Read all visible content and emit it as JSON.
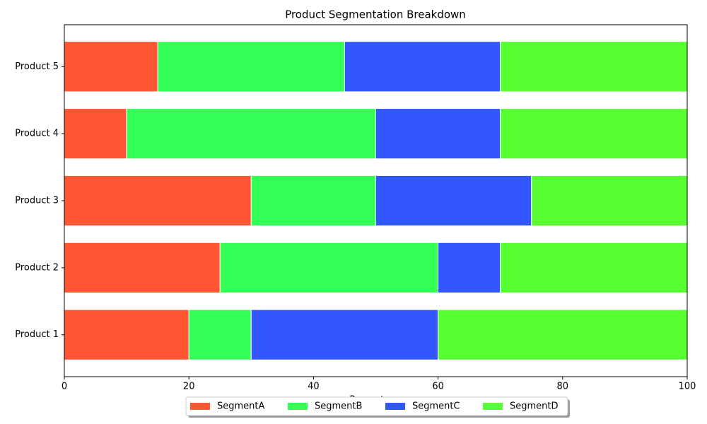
{
  "chart_data": {
    "type": "bar",
    "orientation": "horizontal",
    "stacked": true,
    "title": "Product Segmentation Breakdown",
    "xlabel": "Percentage",
    "categories": [
      "Product 1",
      "Product 2",
      "Product 3",
      "Product 4",
      "Product 5"
    ],
    "series": [
      {
        "name": "SegmentA",
        "color": "#ff5733",
        "values": [
          20,
          25,
          30,
          10,
          15
        ]
      },
      {
        "name": "SegmentB",
        "color": "#33ff57",
        "values": [
          10,
          35,
          20,
          40,
          30
        ]
      },
      {
        "name": "SegmentC",
        "color": "#3357ff",
        "values": [
          30,
          10,
          25,
          20,
          25
        ]
      },
      {
        "name": "SegmentD",
        "color": "#57ff33",
        "values": [
          40,
          30,
          25,
          30,
          30
        ]
      }
    ],
    "xlim": [
      0,
      100
    ],
    "xticks": [
      0,
      20,
      40,
      60,
      80,
      100
    ],
    "grid": false,
    "legend": "lower center"
  }
}
